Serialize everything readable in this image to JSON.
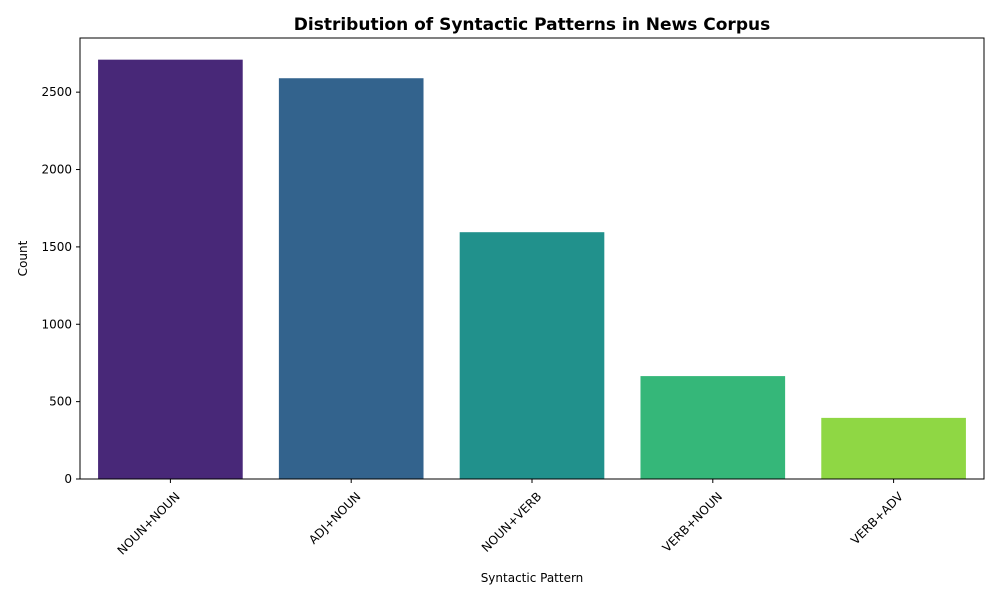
{
  "chart_data": {
    "type": "bar",
    "title": "Distribution of Syntactic Patterns in News Corpus",
    "xlabel": "Syntactic Pattern",
    "ylabel": "Count",
    "categories": [
      "NOUN+NOUN",
      "ADJ+NOUN",
      "NOUN+VERB",
      "VERB+NOUN",
      "VERB+ADV"
    ],
    "values": [
      2710,
      2590,
      1595,
      665,
      395
    ],
    "colors": [
      "#482878",
      "#33638d",
      "#21918c",
      "#35b779",
      "#8fd744"
    ],
    "ylim": [
      0,
      2850
    ],
    "yticks": [
      0,
      500,
      1000,
      1500,
      2000,
      2500
    ],
    "grid": false,
    "legend": "none"
  }
}
